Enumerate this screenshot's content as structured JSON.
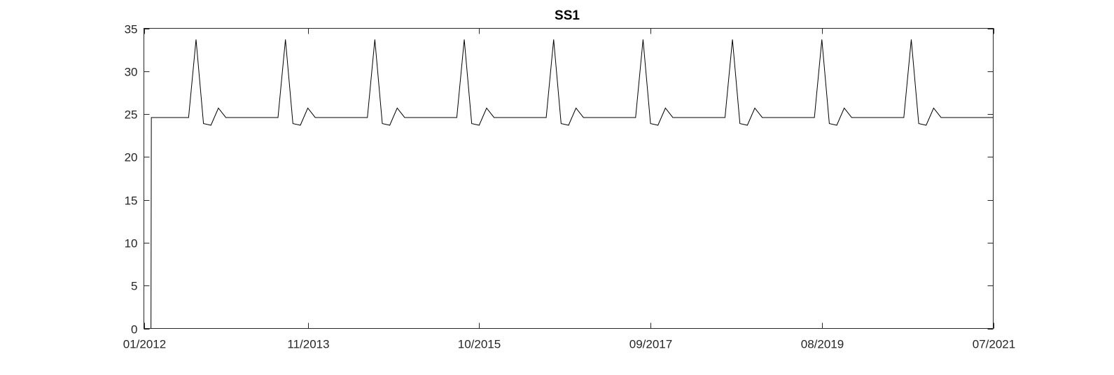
{
  "chart_data": {
    "type": "line",
    "title": "SS1",
    "xlabel": "",
    "ylabel": "",
    "xlim": [
      "2012-01",
      "2021-07"
    ],
    "ylim": [
      0,
      35
    ],
    "xticks": [
      "01/2012",
      "11/2013",
      "10/2015",
      "09/2017",
      "08/2019",
      "07/2021"
    ],
    "xtick_dates": [
      "2012-01",
      "2013-11",
      "2015-10",
      "2017-09",
      "2019-08",
      "2021-07"
    ],
    "yticks": [
      0,
      5,
      10,
      15,
      20,
      25,
      30,
      35
    ],
    "grid": false,
    "legend": "none",
    "line_color": "#000000",
    "series": [
      {
        "x": [
          "2012-01",
          "2012-02",
          "2012-03",
          "2012-04",
          "2012-05",
          "2012-06",
          "2012-07",
          "2012-08",
          "2012-09",
          "2012-10",
          "2012-11",
          "2012-12",
          "2013-01",
          "2013-02",
          "2013-03",
          "2013-04",
          "2013-05",
          "2013-06",
          "2013-07",
          "2013-08",
          "2013-09",
          "2013-10",
          "2013-11",
          "2013-12",
          "2014-01",
          "2014-02",
          "2014-03",
          "2014-04",
          "2014-05",
          "2014-06",
          "2014-07",
          "2014-08",
          "2014-09",
          "2014-10",
          "2014-11",
          "2014-12",
          "2015-01",
          "2015-02",
          "2015-03",
          "2015-04",
          "2015-05",
          "2015-06",
          "2015-07",
          "2015-08",
          "2015-09",
          "2015-10",
          "2015-11",
          "2015-12",
          "2016-01",
          "2016-02",
          "2016-03",
          "2016-04",
          "2016-05",
          "2016-06",
          "2016-07",
          "2016-08",
          "2016-09",
          "2016-10",
          "2016-11",
          "2016-12",
          "2017-01",
          "2017-02",
          "2017-03",
          "2017-04",
          "2017-05",
          "2017-06",
          "2017-07",
          "2017-08",
          "2017-09",
          "2017-10",
          "2017-11",
          "2017-12",
          "2018-01",
          "2018-02",
          "2018-03",
          "2018-04",
          "2018-05",
          "2018-06",
          "2018-07",
          "2018-08",
          "2018-09",
          "2018-10",
          "2018-11",
          "2018-12",
          "2019-01",
          "2019-02",
          "2019-03",
          "2019-04",
          "2019-05",
          "2019-06",
          "2019-07",
          "2019-08",
          "2019-09",
          "2019-10",
          "2019-11",
          "2019-12",
          "2020-01",
          "2020-02",
          "2020-03",
          "2020-04",
          "2020-05",
          "2020-06",
          "2020-07",
          "2020-08",
          "2020-09",
          "2020-10",
          "2020-11",
          "2020-12",
          "2021-01",
          "2021-02",
          "2021-03",
          "2021-04",
          "2021-05",
          "2021-06",
          "2021-07"
        ],
        "y": [
          0,
          24.6,
          24.6,
          24.6,
          24.6,
          24.6,
          24.6,
          33.7,
          23.9,
          23.7,
          25.7,
          24.6,
          24.6,
          24.6,
          24.6,
          24.6,
          24.6,
          24.6,
          24.6,
          33.7,
          23.9,
          23.7,
          25.7,
          24.6,
          24.6,
          24.6,
          24.6,
          24.6,
          24.6,
          24.6,
          24.6,
          33.7,
          23.9,
          23.7,
          25.7,
          24.6,
          24.6,
          24.6,
          24.6,
          24.6,
          24.6,
          24.6,
          24.6,
          33.7,
          23.9,
          23.7,
          25.7,
          24.6,
          24.6,
          24.6,
          24.6,
          24.6,
          24.6,
          24.6,
          24.6,
          33.7,
          23.9,
          23.7,
          25.7,
          24.6,
          24.6,
          24.6,
          24.6,
          24.6,
          24.6,
          24.6,
          24.6,
          33.7,
          23.9,
          23.7,
          25.7,
          24.6,
          24.6,
          24.6,
          24.6,
          24.6,
          24.6,
          24.6,
          24.6,
          33.7,
          23.9,
          23.7,
          25.7,
          24.6,
          24.6,
          24.6,
          24.6,
          24.6,
          24.6,
          24.6,
          24.6,
          33.7,
          23.9,
          23.7,
          25.7,
          24.6,
          24.6,
          24.6,
          24.6,
          24.6,
          24.6,
          24.6,
          24.6,
          33.7,
          23.9,
          23.7,
          25.7,
          24.6,
          24.6,
          24.6,
          24.6,
          24.6,
          24.6,
          24.6,
          24.6
        ]
      }
    ]
  }
}
